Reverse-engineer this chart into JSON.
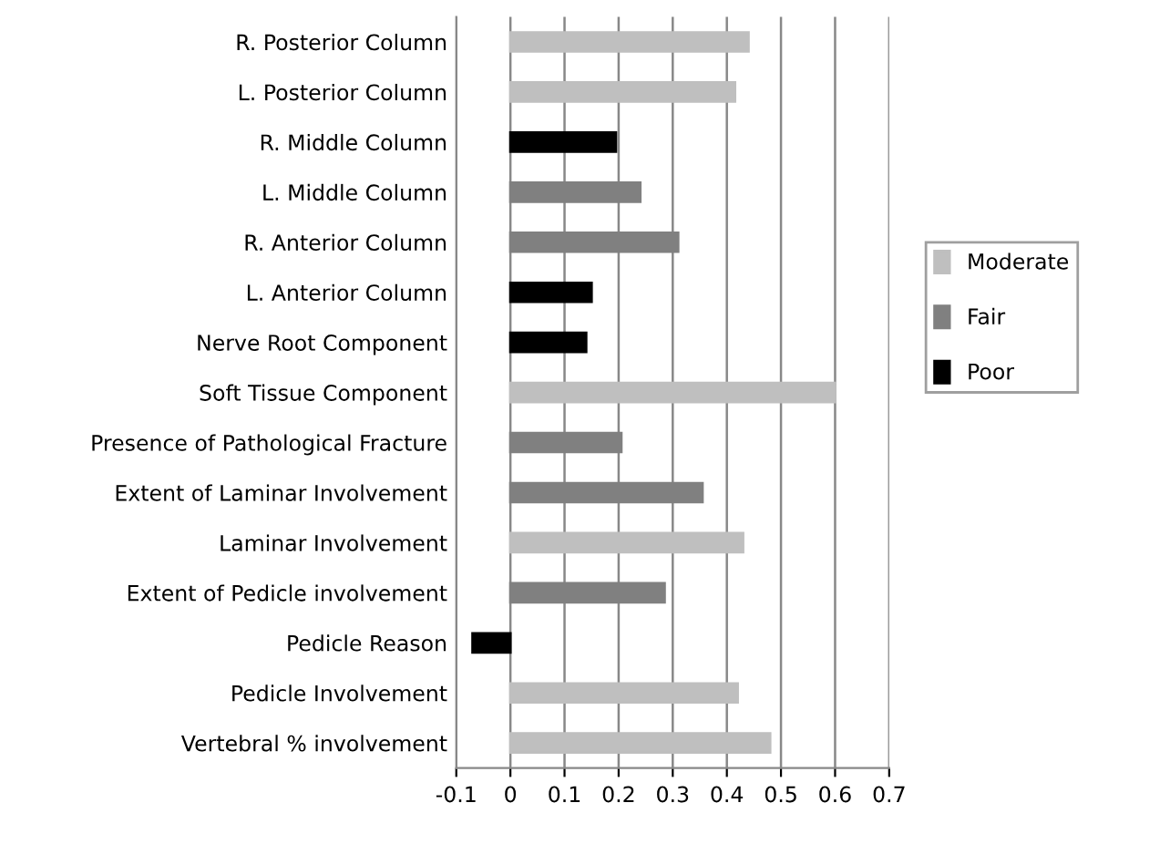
{
  "chart_data": {
    "type": "bar",
    "orientation": "horizontal",
    "categories": [
      "R. Posterior Column",
      "L. Posterior Column",
      "R. Middle Column",
      "L. Middle Column",
      "R. Anterior Column",
      "L. Anterior Column",
      "Nerve Root Component",
      "Soft Tissue Component",
      "Presence of Pathological Fracture",
      "Extent of Laminar Involvement",
      "Laminar Involvement",
      "Extent of Pedicle involvement",
      "Pedicle Reason",
      "Pedicle Involvement",
      "Vertebral % involvement"
    ],
    "series": [
      {
        "name": "Moderate",
        "color": "#bfbfbf",
        "values": [
          0.44,
          0.415,
          null,
          null,
          null,
          null,
          null,
          0.6,
          null,
          null,
          0.43,
          null,
          null,
          0.42,
          0.48
        ]
      },
      {
        "name": "Fair",
        "color": "#808080",
        "values": [
          null,
          null,
          null,
          0.24,
          0.31,
          null,
          null,
          null,
          0.205,
          0.355,
          null,
          0.285,
          null,
          null,
          null
        ]
      },
      {
        "name": "Poor",
        "color": "#000000",
        "values": [
          null,
          null,
          0.195,
          null,
          null,
          0.15,
          0.14,
          null,
          null,
          null,
          null,
          null,
          -0.07,
          null,
          null
        ]
      }
    ],
    "xlim": [
      -0.1,
      0.7
    ],
    "xticks": [
      -0.1,
      0,
      0.1,
      0.2,
      0.3,
      0.4,
      0.5,
      0.6,
      0.7
    ],
    "grid": "x",
    "legend": "right"
  }
}
